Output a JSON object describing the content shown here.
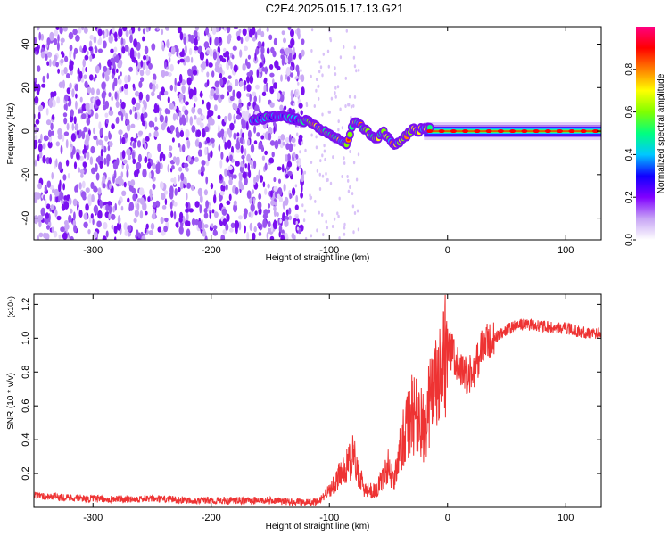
{
  "title": "C2E4.2025.015.17.13.G21",
  "chart_data": [
    {
      "type": "heatmap",
      "xlabel": "Height of straight line (km)",
      "ylabel": "Frequency (Hz)",
      "xlim": [
        -350,
        130
      ],
      "ylim": [
        -50,
        48
      ],
      "xticks": [
        -300,
        -200,
        -100,
        0,
        100
      ],
      "yticks": [
        -40,
        -20,
        0,
        20,
        40
      ],
      "colorbar": {
        "label": "Normalized spectral amplitude",
        "range": [
          0,
          1
        ],
        "ticks": [
          0.0,
          0.2,
          0.4,
          0.6,
          0.8
        ],
        "tick_labels": [
          "0.0",
          "0.2",
          "0.4",
          "0.6",
          "0.8"
        ],
        "colors": [
          "#ffffff",
          "#c7a4f5",
          "#8000ff",
          "#1000ff",
          "#00c8ff",
          "#00ff80",
          "#80ff00",
          "#ffff00",
          "#ff8000",
          "#ff0000",
          "#ff0080"
        ]
      },
      "noise_region_x": [
        -350,
        -130
      ],
      "signal_track": {
        "x": [
          -165,
          -155,
          -145,
          -135,
          -125,
          -115,
          -110,
          -105,
          -100,
          -95,
          -90,
          -85,
          -80,
          -75,
          -70,
          -65,
          -60,
          -55,
          -50,
          -45,
          -40,
          -35,
          -30,
          -25,
          -20,
          -10,
          0,
          20,
          50,
          80,
          110,
          130
        ],
        "y": [
          5,
          6,
          7,
          6,
          5,
          4,
          2,
          0,
          -2,
          -3,
          -5,
          -6,
          4,
          3,
          1,
          -2,
          -4,
          0,
          -3,
          -6,
          -5,
          -2,
          1,
          0,
          2,
          0,
          0,
          0,
          0,
          0,
          0,
          0
        ]
      }
    },
    {
      "type": "line",
      "xlabel": "Height of straight line (km)",
      "ylabel": "SNR (10 * v/v)",
      "scale_label": "(x10⁴)",
      "xlim": [
        -350,
        130
      ],
      "ylim": [
        0.0,
        1.26
      ],
      "xticks": [
        -300,
        -200,
        -100,
        0,
        100
      ],
      "yticks": [
        0.2,
        0.4,
        0.6,
        0.8,
        1.0,
        1.2
      ],
      "ytick_labels": [
        "0.2",
        "0.4",
        "0.6",
        "0.8",
        "1.0",
        "1.2"
      ],
      "series": [
        {
          "color": "#ee3333",
          "x": [
            -350,
            -300,
            -250,
            -200,
            -150,
            -120,
            -110,
            -100,
            -90,
            -80,
            -70,
            -60,
            -50,
            -45,
            -40,
            -35,
            -30,
            -25,
            -20,
            -15,
            -10,
            -5,
            0,
            5,
            10,
            20,
            30,
            40,
            50,
            60,
            70,
            80,
            90,
            100,
            110,
            120,
            130
          ],
          "y": [
            0.07,
            0.05,
            0.05,
            0.04,
            0.04,
            0.03,
            0.03,
            0.1,
            0.2,
            0.3,
            0.1,
            0.1,
            0.25,
            0.15,
            0.35,
            0.45,
            0.55,
            0.55,
            0.45,
            0.65,
            0.7,
            0.75,
            0.95,
            0.9,
            0.8,
            0.78,
            0.95,
            1.0,
            1.05,
            1.08,
            1.08,
            1.07,
            1.06,
            1.06,
            1.04,
            1.03,
            1.03
          ]
        }
      ]
    }
  ]
}
